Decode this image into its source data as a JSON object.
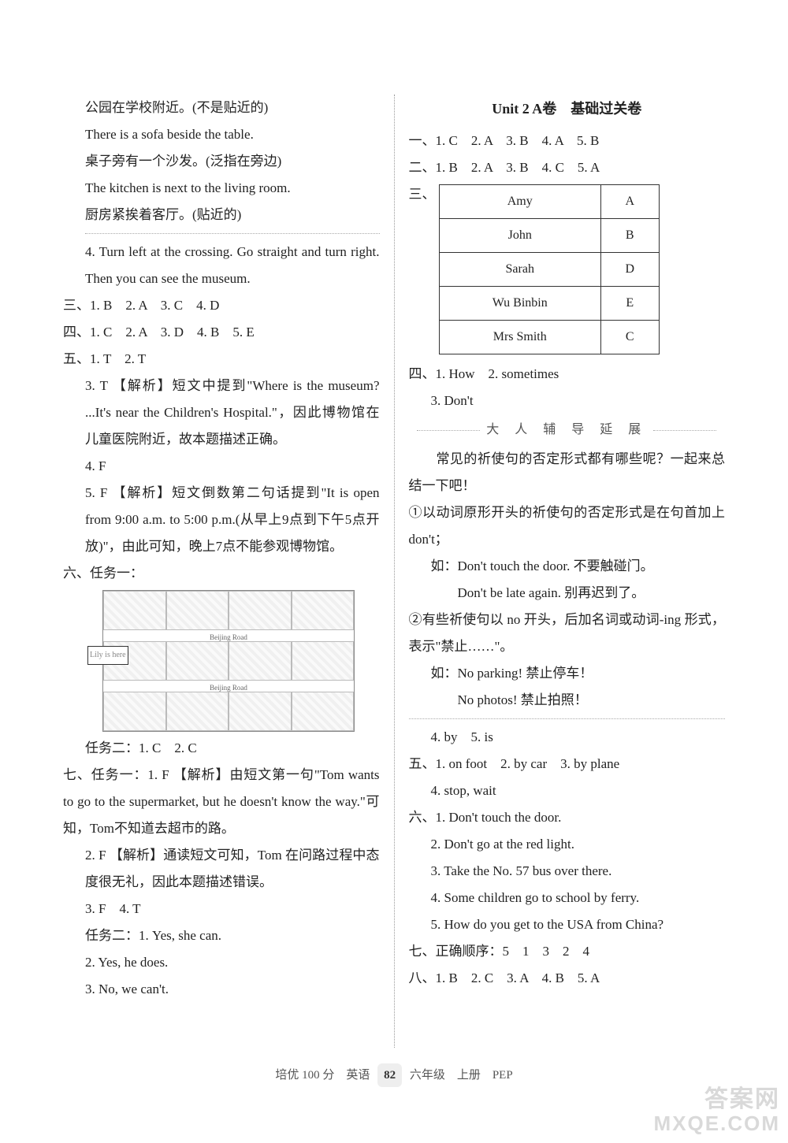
{
  "left": {
    "p1": "公园在学校附近。(不是贴近的)",
    "p2": "There is a sofa beside the table.",
    "p3": "桌子旁有一个沙发。(泛指在旁边)",
    "p4": "The kitchen is next to the living room.",
    "p5": "厨房紧挨着客厅。(贴近的)",
    "q4": "4. Turn left at the crossing. Go straight and turn right. Then you can see the museum.",
    "s3": "三、1. B　2. A　3. C　4. D",
    "s4": "四、1. C　2. A　3. D　4. B　5. E",
    "s5a": "五、1. T　2. T",
    "s5_3": "3. T 【解析】短文中提到\"Where is the museum? ...It's near the Children's Hospital.\"，因此博物馆在儿童医院附近，故本题描述正确。",
    "s5_4": "4. F",
    "s5_5": "5. F 【解析】短文倒数第二句话提到\"It is open from 9:00 a.m. to 5:00 p.m.(从早上9点到下午5点开放)\"，由此可知，晚上7点不能参观博物馆。",
    "s6_label": "六、任务一：",
    "road1": "Beijing Road",
    "road2": "Beijing Road",
    "lily": "Lily is here",
    "task2": "任务二：1. C　2. C",
    "s7_1": "七、任务一：1. F 【解析】由短文第一句\"Tom wants to go to the supermarket, but he doesn't know the way.\"可知，Tom不知道去超市的路。",
    "s7_2": "2. F 【解析】通读短文可知，Tom 在问路过程中态度很无礼，因此本题描述错误。",
    "s7_34": "3. F　4. T",
    "s7_task2_1": "任务二：1. Yes, she can.",
    "s7_task2_2": "2. Yes, he does.",
    "s7_task2_3": "3. No, we can't."
  },
  "right": {
    "title": "Unit 2 A卷　基础过关卷",
    "s1": "一、1. C　2. A　3. B　4. A　5. B",
    "s2": "二、1. B　2. A　3. B　4. C　5. A",
    "s3_label": "三、",
    "table": {
      "rows": [
        [
          "Amy",
          "A"
        ],
        [
          "John",
          "B"
        ],
        [
          "Sarah",
          "D"
        ],
        [
          "Wu Binbin",
          "E"
        ],
        [
          "Mrs Smith",
          "C"
        ]
      ]
    },
    "s4_12": "四、1. How　2. sometimes",
    "s4_3": "3. Don't",
    "ext_title": "大 人 辅 导 延 展",
    "ext_p1": "　　常见的祈使句的否定形式都有哪些呢？一起来总结一下吧！",
    "ext_li1": "①以动词原形开头的祈使句的否定形式是在句首加上 don't；",
    "ext_li1_eg1": "如：Don't touch the door. 不要触碰门。",
    "ext_li1_eg2": "　　Don't be late again. 别再迟到了。",
    "ext_li2": "②有些祈使句以 no 开头，后加名词或动词-ing 形式，表示\"禁止……\"。",
    "ext_li2_eg1": "如：No parking! 禁止停车！",
    "ext_li2_eg2": "　　No photos! 禁止拍照！",
    "s4_45": "4. by　5. is",
    "s5": "五、1. on foot　2. by car　3. by plane",
    "s5_4": "4. stop, wait",
    "s6_1": "六、1. Don't touch the door.",
    "s6_2": "2. Don't go at the red light.",
    "s6_3": "3. Take the No. 57 bus over there.",
    "s6_4": "4. Some children go to school by ferry.",
    "s6_5": "5. How do you get to the USA from China?",
    "s7": "七、正确顺序：5　1　3　2　4",
    "s8": "八、1. B　2. C　3. A　4. B　5. A"
  },
  "footer": {
    "a": "培优 100 分　英语",
    "pg": "82",
    "b": "六年级　上册　PEP"
  },
  "watermark": {
    "cn": "答案网",
    "en": "MXQE.COM"
  }
}
